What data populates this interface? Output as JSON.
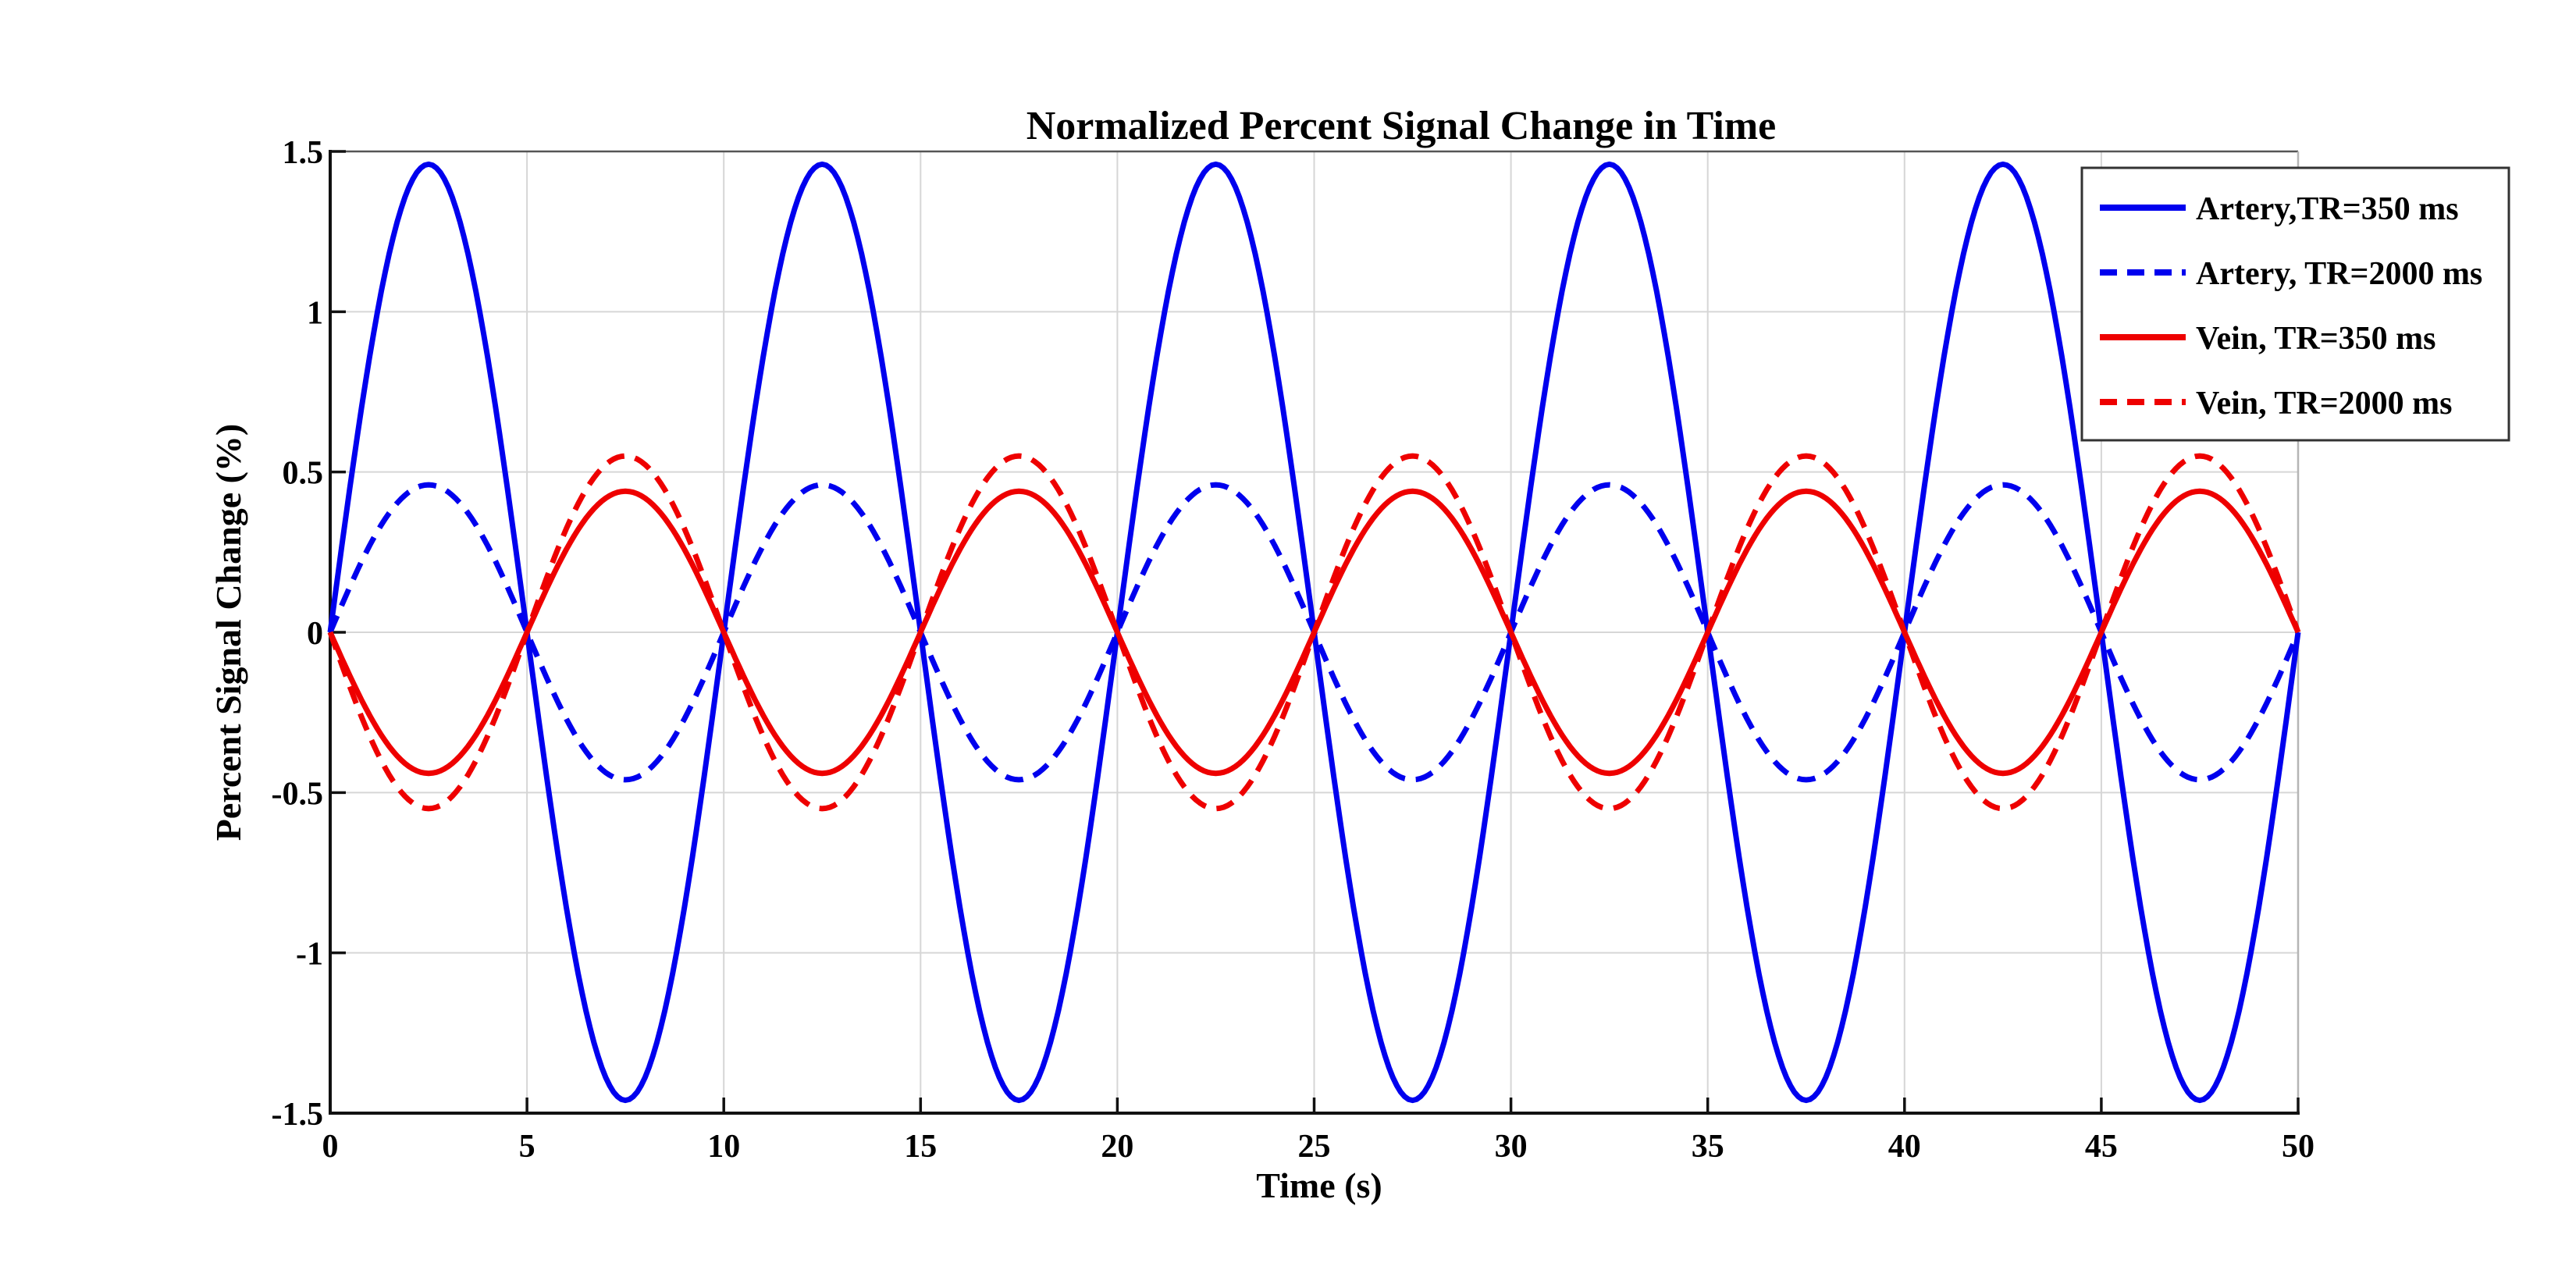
{
  "page": {
    "background": "#ffffff"
  },
  "chart_data": {
    "type": "line",
    "title": "Normalized Percent Signal Change in Time",
    "xlabel": "Time (s)",
    "ylabel": "Percent Signal Change (%)",
    "xlim": [
      0,
      50
    ],
    "ylim": [
      -1.5,
      1.5
    ],
    "x_ticks": [
      0,
      5,
      10,
      15,
      20,
      25,
      30,
      35,
      40,
      45,
      50
    ],
    "x_tick_labels": [
      "0",
      "5",
      "10",
      "15",
      "20",
      "25",
      "30",
      "35",
      "40",
      "45",
      "50"
    ],
    "y_ticks": [
      1.5,
      1,
      0.5,
      0,
      -0.5,
      -1,
      -1.5
    ],
    "y_tick_labels": [
      "1.5",
      "1",
      "0.5",
      "0",
      "-0.5",
      "-1",
      "-1.5"
    ],
    "grid": true,
    "grid_color": "#d6d6d6",
    "axis_color": "#111111",
    "waveform": "sinusoid",
    "period_s": 10,
    "cycles_shown": 5,
    "series": [
      {
        "label": "Artery,TR=350 ms",
        "color": "#0000EE",
        "line_style": "solid",
        "amplitude_pct": 1.46,
        "phase": "+sin",
        "peaks_at_s": [
          2.5,
          12.5,
          22.5,
          32.5,
          42.5
        ],
        "troughs_at_s": [
          7.5,
          17.5,
          27.5,
          37.5,
          47.5
        ],
        "zero_crossings_s": [
          0,
          5,
          10,
          15,
          20,
          25,
          30,
          35,
          40,
          45,
          50
        ]
      },
      {
        "label": "Artery, TR=2000 ms",
        "color": "#0000EE",
        "line_style": "dashed",
        "amplitude_pct": 0.46,
        "phase": "+sin",
        "peaks_at_s": [
          2.5,
          12.5,
          22.5,
          32.5,
          42.5
        ],
        "troughs_at_s": [
          7.5,
          17.5,
          27.5,
          37.5,
          47.5
        ],
        "zero_crossings_s": [
          0,
          5,
          10,
          15,
          20,
          25,
          30,
          35,
          40,
          45,
          50
        ]
      },
      {
        "label": "Vein, TR=350 ms",
        "color": "#EE0000",
        "line_style": "solid",
        "amplitude_pct": 0.44,
        "phase": "-sin",
        "peaks_at_s": [
          7.5,
          17.5,
          27.5,
          37.5,
          47.5
        ],
        "troughs_at_s": [
          2.5,
          12.5,
          22.5,
          32.5,
          42.5
        ],
        "zero_crossings_s": [
          0,
          5,
          10,
          15,
          20,
          25,
          30,
          35,
          40,
          45,
          50
        ]
      },
      {
        "label": "Vein, TR=2000 ms",
        "color": "#EE0000",
        "line_style": "dashed",
        "amplitude_pct": 0.55,
        "phase": "-sin",
        "peaks_at_s": [
          7.5,
          17.5,
          27.5,
          37.5,
          47.5
        ],
        "troughs_at_s": [
          2.5,
          12.5,
          22.5,
          32.5,
          42.5
        ],
        "zero_crossings_s": [
          0,
          5,
          10,
          15,
          20,
          25,
          30,
          35,
          40,
          45,
          50
        ]
      }
    ],
    "legend": {
      "position": "top-right",
      "border_color": "#333333",
      "background": "#ffffff"
    }
  }
}
